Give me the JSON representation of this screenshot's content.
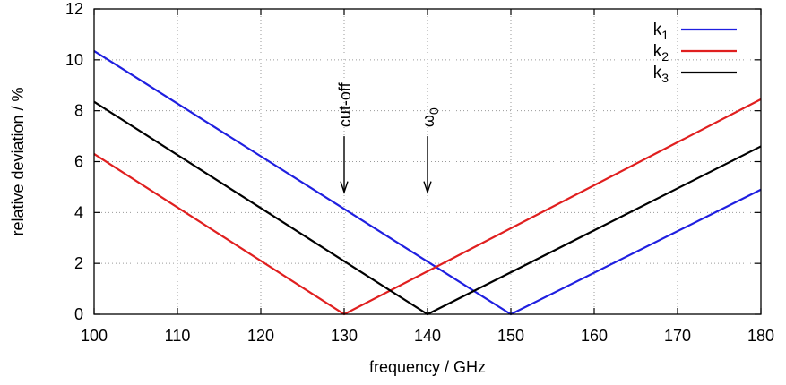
{
  "chart_data": {
    "type": "line",
    "xlabel": "frequency / GHz",
    "ylabel": "relative deviation  /  %",
    "xlim": [
      100,
      180
    ],
    "ylim": [
      0,
      12
    ],
    "x_ticks": [
      100,
      110,
      120,
      130,
      140,
      150,
      160,
      170,
      180
    ],
    "y_ticks": [
      0,
      2,
      4,
      6,
      8,
      10,
      12
    ],
    "grid": true,
    "legend_position": "top-right",
    "series": [
      {
        "name": "k1",
        "name_base": "k",
        "name_sub": "1",
        "color": "#1f1fe0",
        "x": [
          100,
          150,
          180
        ],
        "y": [
          10.35,
          0,
          4.9
        ]
      },
      {
        "name": "k2",
        "name_base": "k",
        "name_sub": "2",
        "color": "#e01f1f",
        "x": [
          100,
          130,
          180
        ],
        "y": [
          6.3,
          0,
          8.45
        ]
      },
      {
        "name": "k3",
        "name_base": "k",
        "name_sub": "3",
        "color": "#000000",
        "x": [
          100,
          140,
          180
        ],
        "y": [
          8.35,
          0,
          6.6
        ]
      }
    ],
    "annotations": [
      {
        "label": "cut-off",
        "label_base": "cut-off",
        "label_sub": "",
        "x": 130,
        "y_top": 7.0,
        "y_bottom": 4.8
      },
      {
        "label": "ω0",
        "label_base": "ω",
        "label_sub": "0",
        "x": 140,
        "y_top": 7.0,
        "y_bottom": 4.8
      }
    ]
  }
}
